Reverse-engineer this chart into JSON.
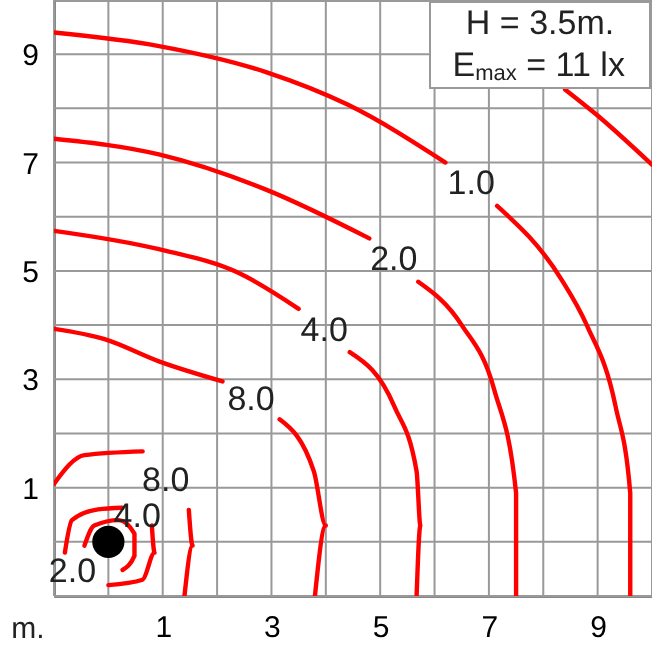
{
  "chart_data": {
    "type": "line",
    "xlabel": "m.",
    "xlim": [
      -1,
      10
    ],
    "ylim": [
      -1,
      10
    ],
    "xticks": [
      {
        "value": -1,
        "label": null
      },
      {
        "value": 0,
        "label": null
      },
      1,
      {
        "value": 2,
        "label": null
      },
      3,
      {
        "value": 4,
        "label": null
      },
      5,
      {
        "value": 6,
        "label": null
      },
      7,
      {
        "value": 8,
        "label": null
      },
      9,
      {
        "value": 10,
        "label": null
      }
    ],
    "yticks": [
      {
        "value": -1,
        "label": null
      },
      {
        "value": 0,
        "label": null
      },
      1,
      {
        "value": 2,
        "label": null
      },
      3,
      {
        "value": 4,
        "label": null
      },
      5,
      {
        "value": 6,
        "label": null
      },
      7,
      {
        "value": 8,
        "label": null
      },
      9,
      {
        "value": 10,
        "label": null
      }
    ],
    "grid": true,
    "line_style": "solid",
    "series": [
      {
        "color": "#ff0000",
        "x": [
          8.4,
          8.96,
          10.0
        ],
        "values": [
          8.35,
          7.9,
          6.96
        ]
      },
      {
        "name": "1.0",
        "color": "#ff0000",
        "x": [
          -1,
          0.93,
          2.9,
          4.4,
          6.2,
          null,
          7.15,
          8.33,
          8.8,
          9.33,
          9.6,
          9.6
        ],
        "values": [
          9.4,
          9.15,
          8.67,
          8.07,
          7.0,
          null,
          6.2,
          4.85,
          4.0,
          2.5,
          0.9,
          -1
        ]
      },
      {
        "name": "2.0",
        "color": "#ff0000",
        "x": [
          -1,
          0.93,
          2.9,
          4.8,
          null,
          5.7,
          6.5,
          7.1,
          7.5,
          7.5
        ],
        "values": [
          7.44,
          7.15,
          6.5,
          5.6,
          null,
          4.8,
          4.0,
          2.8,
          0.9,
          -1
        ]
      },
      {
        "name": "4.0",
        "color": "#ff0000",
        "x": [
          -1,
          0.93,
          2.4,
          3.5,
          null,
          4.44,
          5.26,
          5.67,
          5.74,
          5.67
        ],
        "values": [
          5.74,
          5.4,
          4.96,
          4.3,
          null,
          3.5,
          2.5,
          1.3,
          0.3,
          -1
        ]
      },
      {
        "name": "8.0",
        "color": "#ff0000",
        "x": [
          -1,
          -0.07,
          0.93,
          2.1,
          null,
          3.15,
          3.78,
          4.0,
          3.8
        ],
        "values": [
          3.93,
          3.74,
          3.33,
          2.96,
          null,
          2.26,
          1.3,
          0.3,
          -1
        ]
      },
      {
        "name": "8.0",
        "color": "#ff0000",
        "x": [
          -1,
          -0.44,
          0.63,
          null,
          1.48,
          1.55,
          1.4
        ],
        "values": [
          1.07,
          1.6,
          1.67,
          null,
          0.59,
          -0.07,
          -1
        ]
      },
      {
        "name": "4.0",
        "color": "#ff0000",
        "x": [
          -0.8,
          -0.67,
          -0.19,
          0.26,
          null,
          0.8,
          0.85,
          0.63,
          0.0
        ],
        "values": [
          -0.2,
          0.4,
          0.6,
          0.63,
          null,
          0.3,
          -0.2,
          -0.7,
          -0.8
        ]
      },
      {
        "name": "2.0",
        "color": "#ff0000",
        "x": [
          -0.44,
          -0.26,
          0.19,
          0.48,
          0.48,
          0.26
        ],
        "values": [
          -0.07,
          0.3,
          0.4,
          0.15,
          -0.26,
          -0.52
        ]
      },
      {
        "type": "scatter",
        "marker": "circle",
        "color": "#000000",
        "x": [
          0
        ],
        "values": [
          0
        ]
      }
    ],
    "annotations": [
      "H = 3.5m.",
      "E$_{max}$ = 11 lx"
    ]
  }
}
